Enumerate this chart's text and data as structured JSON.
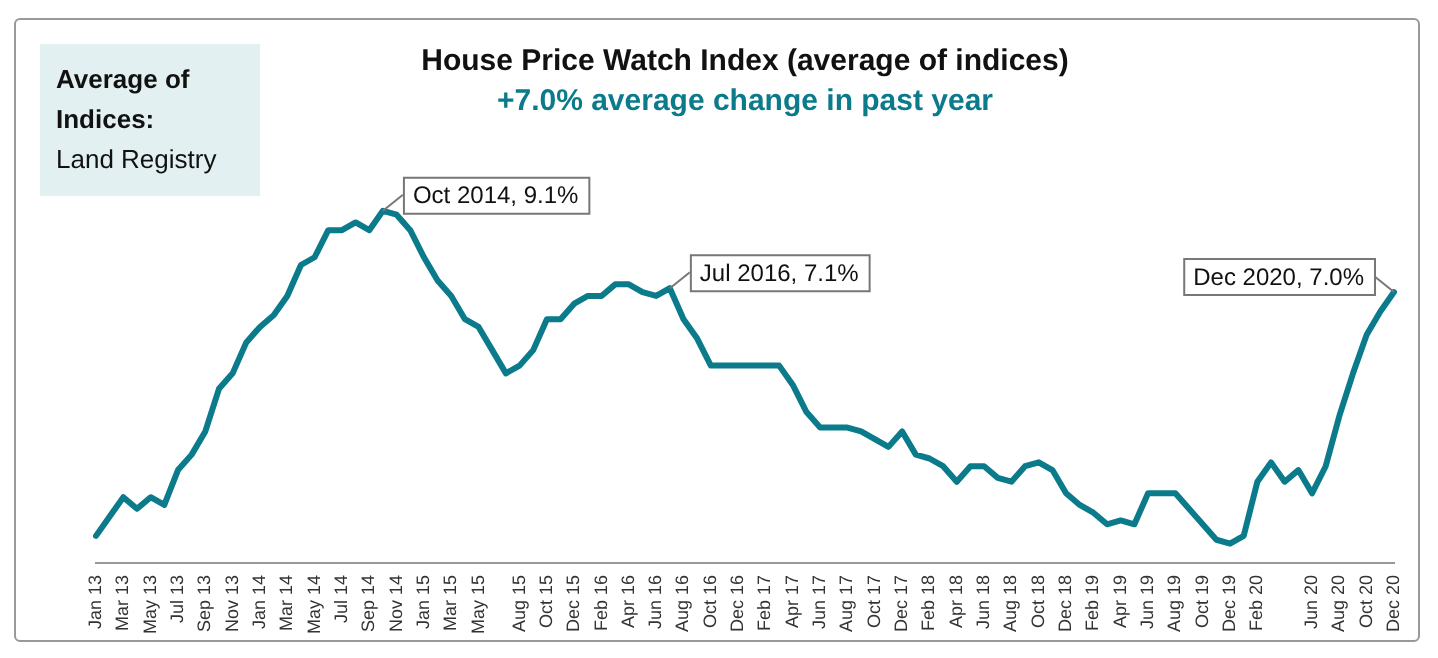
{
  "chart_data": {
    "type": "line",
    "title": "House Price Watch Index (average of indices)",
    "subtitle": "+7.0% average change in past year",
    "annotations": [
      "Average of Indices:",
      "Land Registry"
    ],
    "categories": [
      "Jan 13",
      null,
      "Mar 13",
      null,
      "May 13",
      null,
      "Jul 13",
      null,
      "Sep 13",
      null,
      "Nov 13",
      null,
      "Jan 14",
      null,
      "Mar 14",
      null,
      "May 14",
      null,
      "Jul 14",
      null,
      "Sep 14",
      null,
      "Nov 14",
      null,
      "Jan 15",
      null,
      "Mar 15",
      null,
      "May 15",
      null,
      null,
      "Aug 15",
      null,
      "Oct 15",
      null,
      "Dec 15",
      null,
      "Feb 16",
      null,
      "Apr 16",
      null,
      "Jun 16",
      null,
      "Aug 16",
      null,
      "Oct 16",
      null,
      "Dec 16",
      null,
      "Feb 17",
      null,
      "Apr 17",
      null,
      "Jun 17",
      null,
      "Aug 17",
      null,
      "Oct 17",
      null,
      "Dec 17",
      null,
      "Feb 18",
      null,
      "Apr 18",
      null,
      "Jun 18",
      null,
      "Aug 18",
      null,
      "Oct 18",
      null,
      "Dec 18",
      null,
      "Feb 19",
      null,
      "Apr 19",
      null,
      "Jun 19",
      null,
      "Aug 19",
      null,
      "Oct 19",
      null,
      "Dec 19",
      null,
      "Feb 20",
      null,
      null,
      null,
      "Jun 20",
      null,
      "Aug 20",
      null,
      "Oct 20",
      null,
      "Dec 20"
    ],
    "series": [
      {
        "color": "#0b7b8b",
        "values": [
          0.7,
          1.2,
          1.7,
          1.4,
          1.7,
          1.5,
          2.4,
          2.8,
          3.4,
          4.5,
          4.9,
          5.7,
          6.1,
          6.4,
          6.9,
          7.7,
          7.9,
          8.6,
          8.6,
          8.8,
          8.6,
          9.1,
          9.0,
          8.6,
          7.9,
          7.3,
          6.9,
          6.3,
          6.1,
          5.5,
          4.9,
          5.1,
          5.5,
          6.3,
          6.3,
          6.7,
          6.9,
          6.9,
          7.2,
          7.2,
          7.0,
          6.9,
          7.1,
          6.3,
          5.8,
          5.1,
          5.1,
          5.1,
          5.1,
          5.1,
          5.1,
          4.6,
          3.9,
          3.5,
          3.5,
          3.5,
          3.4,
          3.2,
          3.0,
          3.4,
          2.8,
          2.7,
          2.5,
          2.1,
          2.5,
          2.5,
          2.2,
          2.1,
          2.5,
          2.6,
          2.4,
          1.8,
          1.5,
          1.3,
          1.0,
          1.1,
          1.0,
          1.8,
          1.8,
          1.8,
          1.4,
          1.0,
          0.6,
          0.5,
          0.7,
          2.1,
          2.6,
          2.1,
          2.4,
          1.8,
          2.5,
          3.8,
          4.9,
          5.9,
          6.5,
          7.0
        ],
        "value_labels": [
          null,
          null,
          null,
          null,
          null,
          null,
          null,
          null,
          null,
          null,
          null,
          null,
          null,
          null,
          null,
          null,
          null,
          null,
          null,
          null,
          null,
          "Oct 2014, 9.1%",
          null,
          null,
          null,
          null,
          null,
          null,
          null,
          null,
          null,
          null,
          null,
          null,
          null,
          null,
          null,
          null,
          null,
          null,
          null,
          null,
          "Jul 2016, 7.1%",
          null,
          null,
          null,
          null,
          null,
          null,
          null,
          null,
          null,
          null,
          null,
          null,
          null,
          null,
          null,
          null,
          null,
          null,
          null,
          null,
          null,
          null,
          null,
          null,
          null,
          null,
          null,
          null,
          null,
          null,
          null,
          null,
          null,
          null,
          null,
          null,
          null,
          null,
          null,
          null,
          null,
          null,
          null,
          null,
          null,
          null,
          null,
          null,
          null,
          null,
          null,
          null,
          "Dec 2020, 7.0%"
        ]
      }
    ],
    "marker": "none",
    "line_style": "solid"
  }
}
